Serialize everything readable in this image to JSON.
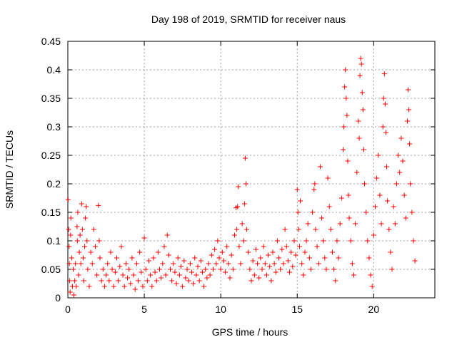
{
  "chart_data": {
    "type": "scatter",
    "title": "Day 198 of 2019, SRMTID for receiver naus",
    "xlabel": "GPS time / hours",
    "ylabel": "SRMTID / TECUs",
    "xlim": [
      0,
      24
    ],
    "ylim": [
      0,
      0.45
    ],
    "x_ticks": [
      0,
      5,
      10,
      15,
      20
    ],
    "x_tick_labels": [
      "0",
      "5",
      "10",
      "15",
      "20"
    ],
    "y_ticks": [
      0,
      0.05,
      0.1,
      0.15,
      0.2,
      0.25,
      0.3,
      0.35,
      0.4,
      0.45
    ],
    "y_tick_labels": [
      "0",
      "0.05",
      "0.1",
      "0.15",
      "0.2",
      "0.25",
      "0.3",
      "0.35",
      "0.4",
      "0.45"
    ],
    "grid": true,
    "marker": "+",
    "marker_color": "#ff0000",
    "series": [
      {
        "name": "SRMTID",
        "points": [
          [
            0.02,
            0.172
          ],
          [
            0.05,
            0.12
          ],
          [
            0.08,
            0.09
          ],
          [
            0.1,
            0.06
          ],
          [
            0.12,
            0.03
          ],
          [
            0.15,
            0.01
          ],
          [
            0.18,
            0.11
          ],
          [
            0.2,
            0.14
          ],
          [
            0.25,
            0.07
          ],
          [
            0.3,
            0.02
          ],
          [
            0.35,
            0.05
          ],
          [
            0.4,
            0.005
          ],
          [
            0.45,
            0.03
          ],
          [
            0.5,
            0.06
          ],
          [
            0.55,
            0.02
          ],
          [
            0.6,
            0.125
          ],
          [
            0.62,
            0.1
          ],
          [
            0.65,
            0.15
          ],
          [
            0.7,
            0.04
          ],
          [
            0.75,
            0.08
          ],
          [
            0.8,
            0.11
          ],
          [
            0.85,
            0.06
          ],
          [
            0.9,
            0.165
          ],
          [
            0.95,
            0.12
          ],
          [
            1.0,
            0.07
          ],
          [
            1.05,
            0.03
          ],
          [
            1.1,
            0.09
          ],
          [
            1.15,
            0.14
          ],
          [
            1.2,
            0.16
          ],
          [
            1.25,
            0.1
          ],
          [
            1.3,
            0.05
          ],
          [
            1.4,
            0.02
          ],
          [
            1.5,
            0.08
          ],
          [
            1.6,
            0.06
          ],
          [
            1.7,
            0.12
          ],
          [
            1.8,
            0.09
          ],
          [
            1.9,
            0.04
          ],
          [
            2.0,
            0.162
          ],
          [
            2.05,
            0.1
          ],
          [
            2.1,
            0.07
          ],
          [
            2.2,
            0.03
          ],
          [
            2.3,
            0.05
          ],
          [
            2.4,
            0.02
          ],
          [
            2.5,
            0.04
          ],
          [
            2.6,
            0.06
          ],
          [
            2.7,
            0.03
          ],
          [
            2.8,
            0.08
          ],
          [
            2.9,
            0.05
          ],
          [
            3.0,
            0.02
          ],
          [
            3.1,
            0.045
          ],
          [
            3.2,
            0.07
          ],
          [
            3.3,
            0.03
          ],
          [
            3.4,
            0.055
          ],
          [
            3.5,
            0.09
          ],
          [
            3.6,
            0.04
          ],
          [
            3.7,
            0.02
          ],
          [
            3.8,
            0.06
          ],
          [
            3.9,
            0.035
          ],
          [
            4.0,
            0.05
          ],
          [
            4.1,
            0.025
          ],
          [
            4.2,
            0.07
          ],
          [
            4.3,
            0.04
          ],
          [
            4.4,
            0.015
          ],
          [
            4.5,
            0.06
          ],
          [
            4.6,
            0.03
          ],
          [
            4.7,
            0.08
          ],
          [
            4.8,
            0.045
          ],
          [
            4.9,
            0.02
          ],
          [
            5.0,
            0.105
          ],
          [
            5.1,
            0.05
          ],
          [
            5.2,
            0.03
          ],
          [
            5.3,
            0.065
          ],
          [
            5.4,
            0.04
          ],
          [
            5.5,
            0.02
          ],
          [
            5.6,
            0.07
          ],
          [
            5.7,
            0.045
          ],
          [
            5.8,
            0.03
          ],
          [
            5.9,
            0.08
          ],
          [
            6.0,
            0.05
          ],
          [
            6.1,
            0.035
          ],
          [
            6.2,
            0.06
          ],
          [
            6.3,
            0.09
          ],
          [
            6.4,
            0.04
          ],
          [
            6.5,
            0.11
          ],
          [
            6.6,
            0.075
          ],
          [
            6.7,
            0.05
          ],
          [
            6.8,
            0.03
          ],
          [
            6.9,
            0.06
          ],
          [
            7.0,
            0.045
          ],
          [
            7.1,
            0.025
          ],
          [
            7.2,
            0.07
          ],
          [
            7.3,
            0.04
          ],
          [
            7.4,
            0.055
          ],
          [
            7.5,
            0.02
          ],
          [
            7.6,
            0.065
          ],
          [
            7.7,
            0.035
          ],
          [
            7.8,
            0.05
          ],
          [
            7.9,
            0.03
          ],
          [
            8.0,
            0.06
          ],
          [
            8.1,
            0.045
          ],
          [
            8.2,
            0.025
          ],
          [
            8.3,
            0.07
          ],
          [
            8.4,
            0.04
          ],
          [
            8.5,
            0.055
          ],
          [
            8.6,
            0.03
          ],
          [
            8.7,
            0.065
          ],
          [
            8.8,
            0.045
          ],
          [
            8.9,
            0.02
          ],
          [
            9.0,
            0.05
          ],
          [
            9.1,
            0.035
          ],
          [
            9.2,
            0.06
          ],
          [
            9.3,
            0.04
          ],
          [
            9.4,
            0.075
          ],
          [
            9.5,
            0.05
          ],
          [
            9.6,
            0.085
          ],
          [
            9.7,
            0.06
          ],
          [
            9.8,
            0.1
          ],
          [
            9.9,
            0.07
          ],
          [
            10.0,
            0.05
          ],
          [
            10.1,
            0.08
          ],
          [
            10.2,
            0.065
          ],
          [
            10.3,
            0.045
          ],
          [
            10.4,
            0.09
          ],
          [
            10.5,
            0.06
          ],
          [
            10.6,
            0.035
          ],
          [
            10.7,
            0.075
          ],
          [
            10.8,
            0.05
          ],
          [
            10.9,
            0.11
          ],
          [
            11.0,
            0.158
          ],
          [
            11.05,
            0.12
          ],
          [
            11.1,
            0.16
          ],
          [
            11.15,
            0.195
          ],
          [
            11.2,
            0.09
          ],
          [
            11.3,
            0.06
          ],
          [
            11.4,
            0.13
          ],
          [
            11.5,
            0.1
          ],
          [
            11.55,
            0.165
          ],
          [
            11.6,
            0.245
          ],
          [
            11.65,
            0.2
          ],
          [
            11.7,
            0.12
          ],
          [
            11.8,
            0.08
          ],
          [
            11.9,
            0.05
          ],
          [
            12.0,
            0.03
          ],
          [
            12.1,
            0.065
          ],
          [
            12.2,
            0.04
          ],
          [
            12.3,
            0.085
          ],
          [
            12.4,
            0.06
          ],
          [
            12.5,
            0.035
          ],
          [
            12.6,
            0.07
          ],
          [
            12.7,
            0.05
          ],
          [
            12.8,
            0.09
          ],
          [
            12.9,
            0.06
          ],
          [
            13.0,
            0.04
          ],
          [
            13.1,
            0.075
          ],
          [
            13.2,
            0.055
          ],
          [
            13.3,
            0.03
          ],
          [
            13.4,
            0.08
          ],
          [
            13.5,
            0.06
          ],
          [
            13.6,
            0.045
          ],
          [
            13.7,
            0.1
          ],
          [
            13.8,
            0.07
          ],
          [
            13.9,
            0.05
          ],
          [
            14.0,
            0.085
          ],
          [
            14.1,
            0.06
          ],
          [
            14.2,
            0.12
          ],
          [
            14.3,
            0.09
          ],
          [
            14.4,
            0.065
          ],
          [
            14.5,
            0.045
          ],
          [
            14.6,
            0.08
          ],
          [
            14.7,
            0.055
          ],
          [
            14.8,
            0.1
          ],
          [
            14.9,
            0.075
          ],
          [
            15.0,
            0.19
          ],
          [
            15.05,
            0.15
          ],
          [
            15.1,
            0.12
          ],
          [
            15.15,
            0.09
          ],
          [
            15.2,
            0.17
          ],
          [
            15.3,
            0.06
          ],
          [
            15.4,
            0.04
          ],
          [
            15.5,
            0.08
          ],
          [
            15.6,
            0.1
          ],
          [
            15.7,
            0.13
          ],
          [
            15.8,
            0.07
          ],
          [
            15.9,
            0.05
          ],
          [
            16.0,
            0.15
          ],
          [
            16.1,
            0.19
          ],
          [
            16.15,
            0.2
          ],
          [
            16.2,
            0.12
          ],
          [
            16.3,
            0.09
          ],
          [
            16.4,
            0.06
          ],
          [
            16.5,
            0.23
          ],
          [
            16.6,
            0.14
          ],
          [
            16.7,
            0.1
          ],
          [
            16.8,
            0.07
          ],
          [
            16.9,
            0.05
          ],
          [
            17.0,
            0.21
          ],
          [
            17.1,
            0.16
          ],
          [
            17.2,
            0.12
          ],
          [
            17.3,
            0.08
          ],
          [
            17.4,
            0.05
          ],
          [
            17.5,
            0.03
          ],
          [
            17.6,
            0.1
          ],
          [
            17.7,
            0.07
          ],
          [
            17.8,
            0.13
          ],
          [
            17.9,
            0.175
          ],
          [
            18.0,
            0.26
          ],
          [
            18.05,
            0.3
          ],
          [
            18.1,
            0.37
          ],
          [
            18.15,
            0.4
          ],
          [
            18.2,
            0.35
          ],
          [
            18.25,
            0.32
          ],
          [
            18.3,
            0.24
          ],
          [
            18.35,
            0.18
          ],
          [
            18.4,
            0.14
          ],
          [
            18.5,
            0.1
          ],
          [
            18.6,
            0.06
          ],
          [
            18.7,
            0.04
          ],
          [
            18.8,
            0.13
          ],
          [
            18.9,
            0.22
          ],
          [
            19.0,
            0.31
          ],
          [
            19.05,
            0.28
          ],
          [
            19.1,
            0.39
          ],
          [
            19.15,
            0.42
          ],
          [
            19.2,
            0.41
          ],
          [
            19.25,
            0.36
          ],
          [
            19.3,
            0.33
          ],
          [
            19.35,
            0.26
          ],
          [
            19.4,
            0.2
          ],
          [
            19.5,
            0.15
          ],
          [
            19.6,
            0.1
          ],
          [
            19.7,
            0.07
          ],
          [
            19.8,
            0.04
          ],
          [
            19.9,
            0.02
          ],
          [
            20.0,
            0.11
          ],
          [
            20.1,
            0.16
          ],
          [
            20.2,
            0.21
          ],
          [
            20.3,
            0.25
          ],
          [
            20.4,
            0.18
          ],
          [
            20.5,
            0.13
          ],
          [
            20.6,
            0.3
          ],
          [
            20.65,
            0.35
          ],
          [
            20.7,
            0.393
          ],
          [
            20.75,
            0.34
          ],
          [
            20.8,
            0.29
          ],
          [
            20.85,
            0.23
          ],
          [
            20.9,
            0.17
          ],
          [
            21.0,
            0.12
          ],
          [
            21.1,
            0.08
          ],
          [
            21.2,
            0.05
          ],
          [
            21.3,
            0.16
          ],
          [
            21.4,
            0.13
          ],
          [
            21.5,
            0.2
          ],
          [
            21.6,
            0.25
          ],
          [
            21.7,
            0.22
          ],
          [
            21.8,
            0.28
          ],
          [
            21.9,
            0.24
          ],
          [
            22.0,
            0.18
          ],
          [
            22.1,
            0.14
          ],
          [
            22.2,
            0.31
          ],
          [
            22.25,
            0.365
          ],
          [
            22.3,
            0.33
          ],
          [
            22.35,
            0.27
          ],
          [
            22.4,
            0.2
          ],
          [
            22.5,
            0.15
          ],
          [
            22.6,
            0.1
          ],
          [
            22.7,
            0.065
          ]
        ]
      }
    ]
  }
}
